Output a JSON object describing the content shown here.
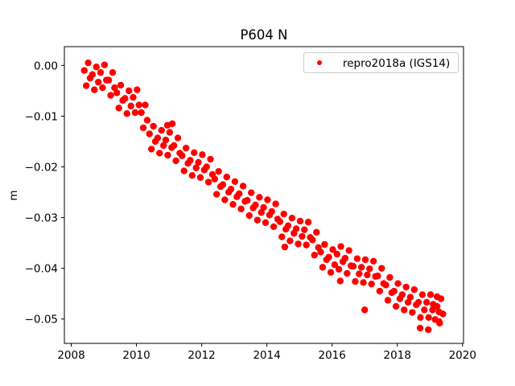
{
  "chart_data": {
    "type": "scatter",
    "title": "P604 N",
    "xlabel": "",
    "ylabel": "m",
    "xlim": [
      2007.79,
      2020.03
    ],
    "ylim": [
      -0.0548,
      0.0037
    ],
    "x_ticks": [
      "2008",
      "2010",
      "2012",
      "2014",
      "2016",
      "2018",
      "2020"
    ],
    "x_tick_values": [
      2008,
      2010,
      2012,
      2014,
      2016,
      2018,
      2020
    ],
    "y_ticks": [
      "0.00",
      "−0.01",
      "−0.02",
      "−0.03",
      "−0.04",
      "−0.05"
    ],
    "y_tick_values": [
      0,
      -0.01,
      -0.02,
      -0.03,
      -0.04,
      -0.05
    ],
    "grid": false,
    "legend_position": "top-right",
    "series": [
      {
        "name": "repro2018a (IGS14)",
        "color": "#ff0000",
        "marker": "circle",
        "points": [
          [
            2008.4,
            -0.001
          ],
          [
            2008.46,
            -0.004
          ],
          [
            2008.52,
            0.0005
          ],
          [
            2008.58,
            -0.0025
          ],
          [
            2008.65,
            -0.0018
          ],
          [
            2008.71,
            -0.0048
          ],
          [
            2008.77,
            -0.0003
          ],
          [
            2008.83,
            -0.0033
          ],
          [
            2008.9,
            -0.0014
          ],
          [
            2008.96,
            -0.0044
          ],
          [
            2009.02,
            0.0001
          ],
          [
            2009.08,
            -0.0029
          ],
          [
            2009.15,
            -0.0029
          ],
          [
            2009.21,
            -0.0059
          ],
          [
            2009.27,
            -0.0014
          ],
          [
            2009.33,
            -0.0044
          ],
          [
            2009.4,
            -0.0054
          ],
          [
            2009.46,
            -0.0084
          ],
          [
            2009.52,
            -0.0039
          ],
          [
            2009.58,
            -0.0069
          ],
          [
            2009.65,
            -0.0065
          ],
          [
            2009.71,
            -0.0095
          ],
          [
            2009.77,
            -0.005
          ],
          [
            2009.83,
            -0.008
          ],
          [
            2009.9,
            -0.0063
          ],
          [
            2009.96,
            -0.0093
          ],
          [
            2010.02,
            -0.0048
          ],
          [
            2010.08,
            -0.0078
          ],
          [
            2010.15,
            -0.0093
          ],
          [
            2010.21,
            -0.0123
          ],
          [
            2010.27,
            -0.0078
          ],
          [
            2010.33,
            -0.0108
          ],
          [
            2010.4,
            -0.0135
          ],
          [
            2010.46,
            -0.0165
          ],
          [
            2010.52,
            -0.012
          ],
          [
            2010.58,
            -0.015
          ],
          [
            2010.65,
            -0.0143
          ],
          [
            2010.71,
            -0.0173
          ],
          [
            2010.77,
            -0.0128
          ],
          [
            2010.83,
            -0.0158
          ],
          [
            2010.9,
            -0.0147
          ],
          [
            2010.96,
            -0.0177
          ],
          [
            2011.02,
            -0.0132
          ],
          [
            2011.08,
            -0.0162
          ],
          [
            2011.15,
            -0.0158
          ],
          [
            2011.21,
            -0.0188
          ],
          [
            2011.27,
            -0.0143
          ],
          [
            2011.33,
            -0.0173
          ],
          [
            2011.4,
            -0.0178
          ],
          [
            2011.46,
            -0.0208
          ],
          [
            2011.52,
            -0.0163
          ],
          [
            2011.58,
            -0.0193
          ],
          [
            2011.65,
            -0.0187
          ],
          [
            2011.71,
            -0.0217
          ],
          [
            2011.77,
            -0.0172
          ],
          [
            2011.83,
            -0.0202
          ],
          [
            2011.9,
            -0.0191
          ],
          [
            2011.96,
            -0.0221
          ],
          [
            2012.02,
            -0.0176
          ],
          [
            2012.08,
            -0.0206
          ],
          [
            2012.15,
            -0.02
          ],
          [
            2012.21,
            -0.023
          ],
          [
            2012.27,
            -0.0185
          ],
          [
            2012.33,
            -0.0215
          ],
          [
            2012.4,
            -0.0224
          ],
          [
            2012.46,
            -0.0254
          ],
          [
            2012.52,
            -0.0209
          ],
          [
            2012.58,
            -0.0239
          ],
          [
            2012.65,
            -0.0235
          ],
          [
            2012.71,
            -0.0265
          ],
          [
            2012.77,
            -0.022
          ],
          [
            2012.83,
            -0.025
          ],
          [
            2012.9,
            -0.0244
          ],
          [
            2012.96,
            -0.0274
          ],
          [
            2013.02,
            -0.0229
          ],
          [
            2013.08,
            -0.0259
          ],
          [
            2013.15,
            -0.0253
          ],
          [
            2013.21,
            -0.0283
          ],
          [
            2013.27,
            -0.0238
          ],
          [
            2013.33,
            -0.0268
          ],
          [
            2013.4,
            -0.0266
          ],
          [
            2013.46,
            -0.0296
          ],
          [
            2013.52,
            -0.0251
          ],
          [
            2013.58,
            -0.0281
          ],
          [
            2013.65,
            -0.0275
          ],
          [
            2013.71,
            -0.0305
          ],
          [
            2013.77,
            -0.026
          ],
          [
            2013.83,
            -0.029
          ],
          [
            2013.9,
            -0.028
          ],
          [
            2013.96,
            -0.031
          ],
          [
            2014.02,
            -0.0265
          ],
          [
            2014.08,
            -0.0295
          ],
          [
            2014.15,
            -0.0288
          ],
          [
            2014.21,
            -0.0318
          ],
          [
            2014.27,
            -0.0273
          ],
          [
            2014.33,
            -0.0303
          ],
          [
            2014.4,
            -0.0308
          ],
          [
            2014.46,
            -0.0338
          ],
          [
            2014.52,
            -0.0293
          ],
          [
            2014.58,
            -0.0323
          ],
          [
            2014.65,
            -0.0316
          ],
          [
            2014.71,
            -0.0346
          ],
          [
            2014.77,
            -0.0301
          ],
          [
            2014.83,
            -0.0331
          ],
          [
            2014.9,
            -0.0322
          ],
          [
            2014.96,
            -0.0352
          ],
          [
            2015.02,
            -0.0307
          ],
          [
            2015.08,
            -0.0337
          ],
          [
            2015.15,
            -0.0324
          ],
          [
            2015.21,
            -0.0354
          ],
          [
            2015.27,
            -0.0309
          ],
          [
            2015.33,
            -0.0339
          ],
          [
            2015.4,
            -0.0344
          ],
          [
            2015.46,
            -0.0374
          ],
          [
            2015.52,
            -0.0329
          ],
          [
            2015.58,
            -0.0359
          ],
          [
            2015.65,
            -0.0368
          ],
          [
            2015.71,
            -0.0398
          ],
          [
            2015.77,
            -0.0353
          ],
          [
            2015.83,
            -0.0383
          ],
          [
            2015.9,
            -0.0378
          ],
          [
            2015.96,
            -0.0408
          ],
          [
            2016.02,
            -0.0363
          ],
          [
            2016.08,
            -0.0393
          ],
          [
            2016.15,
            -0.0372
          ],
          [
            2016.21,
            -0.0402
          ],
          [
            2016.27,
            -0.0357
          ],
          [
            2016.33,
            -0.0387
          ],
          [
            2016.4,
            -0.038
          ],
          [
            2016.46,
            -0.041
          ],
          [
            2016.52,
            -0.0365
          ],
          [
            2016.58,
            -0.0395
          ],
          [
            2016.65,
            -0.0396
          ],
          [
            2016.71,
            -0.0426
          ],
          [
            2016.77,
            -0.0381
          ],
          [
            2016.83,
            -0.0411
          ],
          [
            2016.9,
            -0.0398
          ],
          [
            2016.96,
            -0.0428
          ],
          [
            2017.02,
            -0.0383
          ],
          [
            2017.08,
            -0.0413
          ],
          [
            2017.15,
            -0.0401
          ],
          [
            2017.21,
            -0.0431
          ],
          [
            2017.27,
            -0.0386
          ],
          [
            2017.33,
            -0.0416
          ],
          [
            2017.4,
            -0.0415
          ],
          [
            2017.46,
            -0.0445
          ],
          [
            2017.52,
            -0.04
          ],
          [
            2017.58,
            -0.043
          ],
          [
            2017.65,
            -0.0433
          ],
          [
            2017.71,
            -0.0463
          ],
          [
            2017.77,
            -0.0418
          ],
          [
            2017.83,
            -0.0448
          ],
          [
            2017.9,
            -0.0445
          ],
          [
            2017.96,
            -0.0475
          ],
          [
            2018.02,
            -0.043
          ],
          [
            2018.08,
            -0.046
          ],
          [
            2018.15,
            -0.0452
          ],
          [
            2018.21,
            -0.0482
          ],
          [
            2018.27,
            -0.0437
          ],
          [
            2018.33,
            -0.0467
          ],
          [
            2018.4,
            -0.0457
          ],
          [
            2018.46,
            -0.0487
          ],
          [
            2018.52,
            -0.0442
          ],
          [
            2018.58,
            -0.0472
          ],
          [
            2018.65,
            -0.0467
          ],
          [
            2018.71,
            -0.0497
          ],
          [
            2018.77,
            -0.0452
          ],
          [
            2018.83,
            -0.0482
          ],
          [
            2018.9,
            -0.0467
          ],
          [
            2018.96,
            -0.0497
          ],
          [
            2019.02,
            -0.0452
          ],
          [
            2019.08,
            -0.0482
          ],
          [
            2019.1,
            -0.0471
          ],
          [
            2019.16,
            -0.0501
          ],
          [
            2019.22,
            -0.0456
          ],
          [
            2019.28,
            -0.0486
          ],
          [
            2019.22,
            -0.0475
          ],
          [
            2019.28,
            -0.0505
          ],
          [
            2019.34,
            -0.046
          ],
          [
            2019.4,
            -0.049
          ],
          [
            2010.95,
            -0.0118
          ],
          [
            2011.1,
            -0.0115
          ],
          [
            2014.55,
            -0.0358
          ],
          [
            2016.25,
            -0.0425
          ],
          [
            2017.0,
            -0.0482
          ],
          [
            2018.7,
            -0.0518
          ],
          [
            2018.95,
            -0.0521
          ],
          [
            2019.3,
            -0.0508
          ]
        ]
      }
    ]
  }
}
